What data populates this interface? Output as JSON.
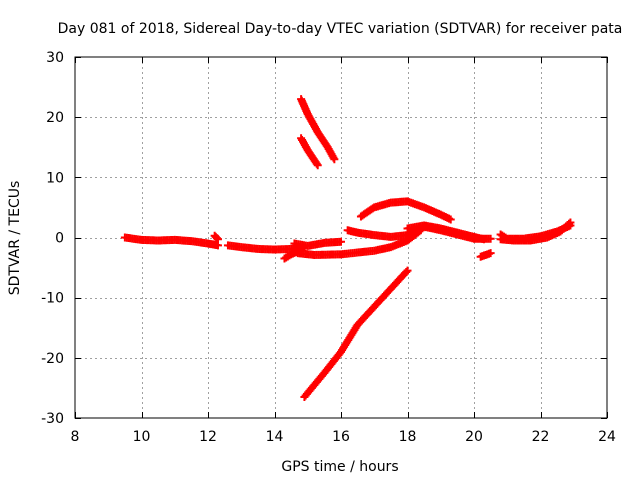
{
  "chart_data": {
    "type": "scatter",
    "title": "Day 081 of 2018, Sidereal Day-to-day VTEC variation (SDTVAR) for receiver pata",
    "xlabel": "GPS time / hours",
    "ylabel": "SDTVAR / TECUs",
    "xlim": [
      8,
      24
    ],
    "ylim": [
      -30,
      30
    ],
    "xticks": [
      8,
      10,
      12,
      14,
      16,
      18,
      20,
      22,
      24
    ],
    "yticks": [
      -30,
      -20,
      -10,
      0,
      10,
      20,
      30
    ],
    "grid": true,
    "marker": "+",
    "color": "#ff0000",
    "series": [
      {
        "x": [
          9.5,
          10.0,
          10.5,
          11.0,
          11.5,
          12.0,
          12.3
        ],
        "y": [
          0.0,
          -0.4,
          -0.5,
          -0.4,
          -0.6,
          -1.0,
          -1.3
        ]
      },
      {
        "x": [
          12.2,
          12.3
        ],
        "y": [
          0.3,
          -0.3
        ]
      },
      {
        "x": [
          12.6,
          13.0,
          13.5,
          14.0,
          14.5,
          14.9
        ],
        "y": [
          -1.3,
          -1.6,
          -1.9,
          -2.0,
          -1.9,
          -1.7
        ]
      },
      {
        "x": [
          14.3,
          14.5,
          14.7
        ],
        "y": [
          -3.5,
          -2.8,
          -2.3
        ]
      },
      {
        "x": [
          14.6,
          15.0,
          15.5,
          16.0
        ],
        "y": [
          -1.0,
          -1.4,
          -0.9,
          -0.7
        ]
      },
      {
        "x": [
          14.7,
          15.2,
          16.0,
          17.0,
          17.5,
          18.0,
          18.4
        ],
        "y": [
          -2.6,
          -2.9,
          -2.8,
          -2.2,
          -1.6,
          -0.5,
          1.2
        ]
      },
      {
        "x": [
          14.8,
          15.0,
          15.3,
          15.6,
          15.8
        ],
        "y": [
          23.0,
          20.5,
          17.5,
          15.0,
          13.0
        ]
      },
      {
        "x": [
          14.8,
          15.0,
          15.3
        ],
        "y": [
          16.5,
          14.5,
          12.0
        ]
      },
      {
        "x": [
          14.9,
          15.5,
          16.0,
          16.5,
          17.0,
          17.5,
          18.0
        ],
        "y": [
          -26.5,
          -22.5,
          -19.0,
          -14.5,
          -11.5,
          -8.5,
          -5.5
        ]
      },
      {
        "x": [
          16.2,
          16.5,
          17.0,
          17.5,
          18.0,
          18.5,
          19.0,
          19.5,
          20.0,
          20.5
        ],
        "y": [
          1.2,
          0.8,
          0.4,
          0.1,
          0.4,
          1.8,
          1.2,
          0.5,
          -0.2,
          -0.2
        ]
      },
      {
        "x": [
          16.6,
          17.0,
          17.5,
          18.0,
          18.5,
          19.0,
          19.3
        ],
        "y": [
          3.5,
          5.0,
          5.8,
          6.0,
          5.0,
          3.8,
          3.0
        ]
      },
      {
        "x": [
          18.0,
          18.5,
          19.0,
          19.5,
          20.0,
          20.3
        ],
        "y": [
          1.5,
          2.0,
          1.5,
          0.8,
          0.1,
          -0.3
        ]
      },
      {
        "x": [
          20.2,
          20.5
        ],
        "y": [
          -3.2,
          -2.6
        ]
      },
      {
        "x": [
          20.8,
          21.0,
          21.5,
          22.0,
          22.5,
          22.9
        ],
        "y": [
          0.5,
          -0.2,
          -0.2,
          0.2,
          1.0,
          2.0
        ]
      },
      {
        "x": [
          20.8,
          21.2,
          21.7,
          22.2,
          22.6,
          22.9
        ],
        "y": [
          -0.3,
          -0.5,
          -0.5,
          0.0,
          1.0,
          2.5
        ]
      }
    ]
  }
}
